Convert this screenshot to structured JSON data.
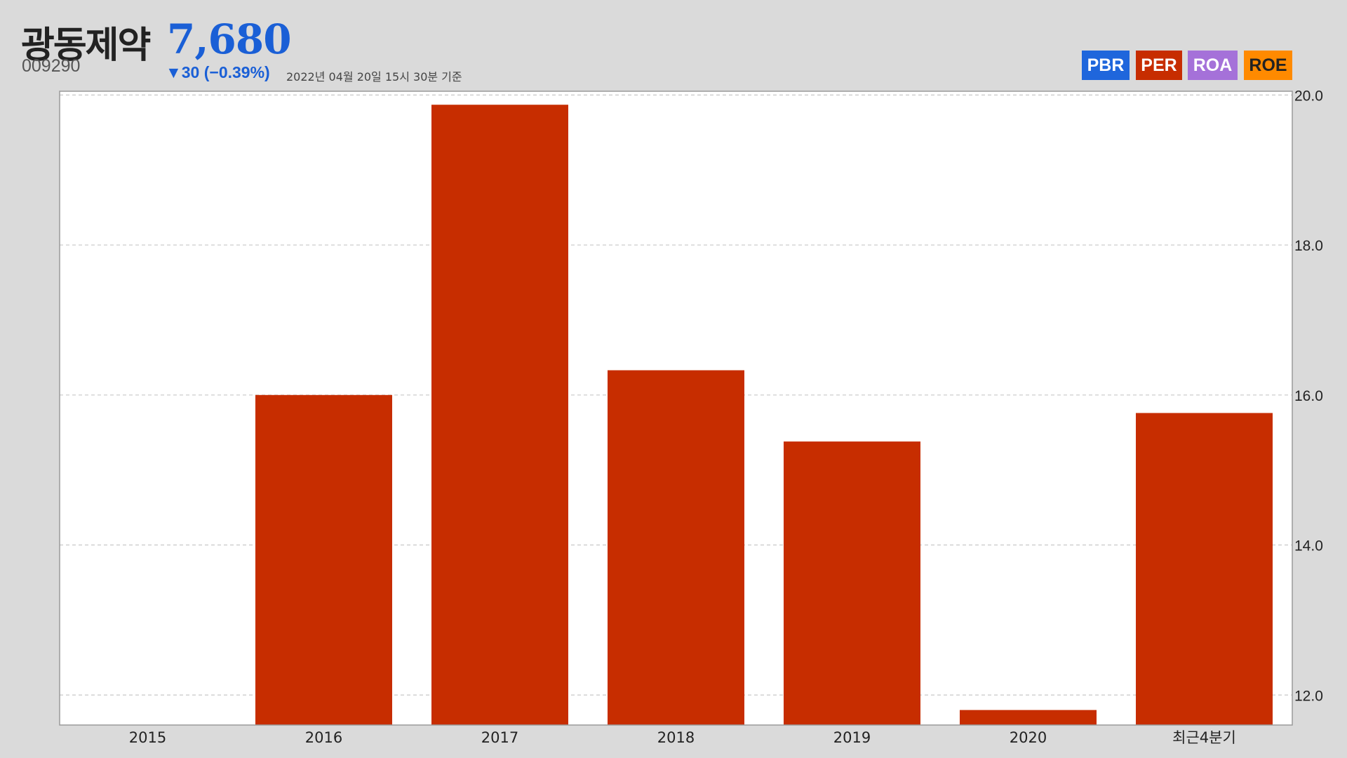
{
  "header": {
    "company_name": "광동제약",
    "price": "7,680",
    "code": "009290",
    "change": "▼30 (−0.39%)",
    "timestamp": "2022년 04월 20일 15시 30분 기준"
  },
  "legend": {
    "pbr": {
      "label": "PBR",
      "color": "#1f66dc"
    },
    "per": {
      "label": "PER",
      "color": "#c72d00"
    },
    "roa": {
      "label": "ROA",
      "color": "#a571d9"
    },
    "roe": {
      "label": "ROE",
      "color": "#ff8a00"
    }
  },
  "chart_data": {
    "type": "bar",
    "categories": [
      "2015",
      "2016",
      "2017",
      "2018",
      "2019",
      "2020",
      "최근4분기"
    ],
    "series": [
      {
        "name": "PER",
        "values": [
          null,
          16.0,
          19.87,
          16.33,
          15.38,
          11.8,
          15.76
        ],
        "color": "#c72d00"
      }
    ],
    "y_ticks": [
      "20.0",
      "18.0",
      "16.0",
      "14.0",
      "12.0"
    ],
    "ylim": [
      11.6,
      20.05
    ],
    "y_axis_side": "right",
    "grid": "horizontal-dashed",
    "title": "",
    "xlabel": "",
    "ylabel": ""
  }
}
